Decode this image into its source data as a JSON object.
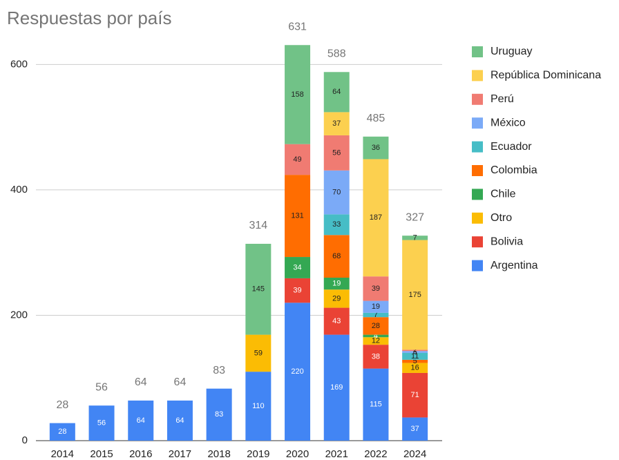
{
  "chart_data": {
    "type": "stacked_bar",
    "title": "Respuestas por país",
    "categories": [
      "2014",
      "2015",
      "2016",
      "2017",
      "2018",
      "2019",
      "2020",
      "2021",
      "2022",
      "2024"
    ],
    "totals": [
      28,
      56,
      64,
      64,
      83,
      314,
      631,
      588,
      485,
      327
    ],
    "series": [
      {
        "name": "Argentina",
        "color": "#4285f4",
        "values": [
          28,
          56,
          64,
          64,
          83,
          110,
          220,
          169,
          115,
          37
        ]
      },
      {
        "name": "Bolivia",
        "color": "#ea4335",
        "values": [
          null,
          null,
          null,
          null,
          null,
          null,
          39,
          43,
          38,
          71
        ]
      },
      {
        "name": "Otro",
        "color": "#fbbc04",
        "values": [
          null,
          null,
          null,
          null,
          null,
          59,
          null,
          29,
          12,
          16
        ]
      },
      {
        "name": "Chile",
        "color": "#34a853",
        "values": [
          null,
          null,
          null,
          null,
          null,
          null,
          34,
          19,
          4,
          null
        ]
      },
      {
        "name": "Colombia",
        "color": "#ff6d01",
        "values": [
          null,
          null,
          null,
          null,
          null,
          null,
          131,
          68,
          28,
          5
        ]
      },
      {
        "name": "Ecuador",
        "color": "#46bdc6",
        "values": [
          null,
          null,
          null,
          null,
          null,
          null,
          null,
          33,
          7,
          11
        ]
      },
      {
        "name": "México",
        "color": "#7baaf7",
        "values": [
          null,
          null,
          null,
          null,
          null,
          null,
          null,
          70,
          19,
          3
        ]
      },
      {
        "name": "Perú",
        "color": "#f07b72",
        "values": [
          null,
          null,
          null,
          null,
          null,
          null,
          49,
          56,
          39,
          2
        ]
      },
      {
        "name": "República Dominicana",
        "color": "#fcd04f",
        "values": [
          null,
          null,
          null,
          null,
          null,
          null,
          null,
          37,
          187,
          175
        ]
      },
      {
        "name": "Uruguay",
        "color": "#71c287",
        "values": [
          null,
          null,
          null,
          null,
          null,
          145,
          158,
          64,
          36,
          7
        ]
      }
    ],
    "ylim": [
      0,
      650
    ],
    "yticks": [
      0,
      200,
      400,
      600
    ],
    "grid": true,
    "legend": "right"
  }
}
